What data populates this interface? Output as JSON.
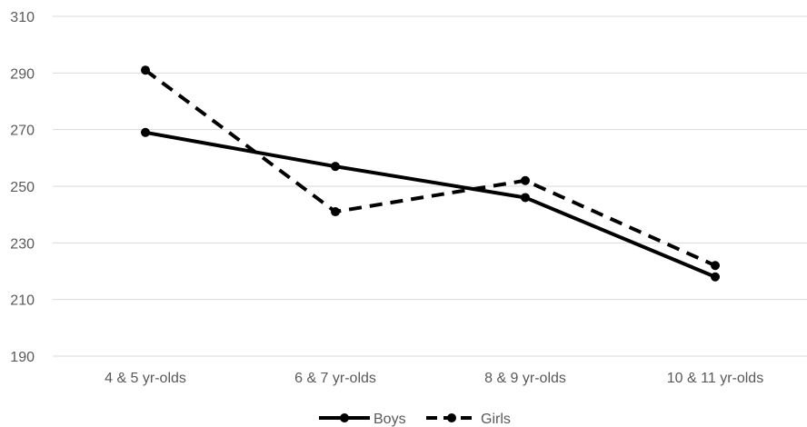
{
  "chart_data": {
    "type": "line",
    "categories": [
      "4 & 5 yr-olds",
      "6 & 7 yr-olds",
      "8 & 9 yr-olds",
      "10 & 11 yr-olds"
    ],
    "series": [
      {
        "name": "Boys",
        "values": [
          269,
          257,
          246,
          218
        ],
        "line_style": "solid",
        "color": "#000000"
      },
      {
        "name": "Girls",
        "values": [
          291,
          241,
          252,
          222
        ],
        "line_style": "dashed",
        "color": "#000000"
      }
    ],
    "title": "",
    "xlabel": "",
    "ylabel": "",
    "ylim": [
      190,
      310
    ],
    "yticks": [
      190,
      210,
      230,
      250,
      270,
      290,
      310
    ],
    "grid": true,
    "legend_position": "bottom",
    "colors": {
      "gridline": "#d9d9d9",
      "tick_text": "#595959",
      "series": "#000000"
    }
  }
}
